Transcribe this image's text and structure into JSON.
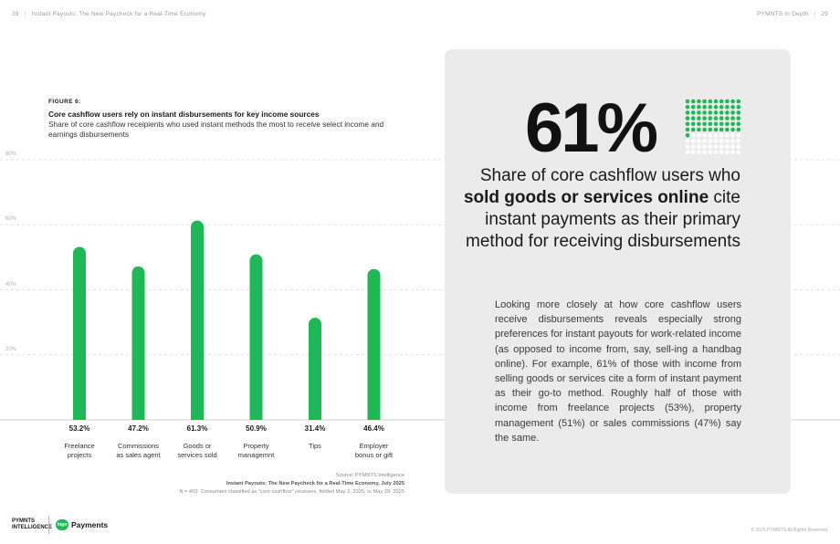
{
  "header": {
    "page_left": "28",
    "title_left": "Instant Payouts: The New Paycheck for a Real-Time Economy",
    "title_right": "PYMNTS In Depth",
    "page_right": "29"
  },
  "figure": {
    "label": "FIGURE 6:",
    "title": "Core cashflow users rely on instant disbursements for key income sources",
    "subtitle": "Share of core cashflow receipients who used instant methods the most to receive select income and earnings disbursements"
  },
  "chart_data": {
    "type": "bar",
    "categories": [
      [
        "Freelance",
        "projects"
      ],
      [
        "Commissions",
        "as sales agent"
      ],
      [
        "Goods or",
        "services sold"
      ],
      [
        "Property",
        "managemnt"
      ],
      [
        "Tips",
        ""
      ],
      [
        "Employer",
        "bonus or gift"
      ]
    ],
    "values": [
      53.2,
      47.2,
      61.3,
      50.9,
      31.4,
      46.4
    ],
    "value_labels": [
      "53.2%",
      "47.2%",
      "61.3%",
      "50.9%",
      "31.4%",
      "46.4%"
    ],
    "ylim": [
      0,
      80
    ],
    "yticks": [
      20,
      40,
      60,
      80
    ],
    "ytick_labels": [
      "20%",
      "40%",
      "60%",
      "80%"
    ],
    "grid": true,
    "bar_color": "#1db954",
    "grid_color": "#d8d8d8"
  },
  "source": {
    "line1": "Source: PYMNTS Intelligence",
    "line2": "Instant Payouts: The New Paycheck for a Real-Time Economy, July 2025",
    "line3": "N = 403: Consumers classified as \"core cashflow\" receivers, fielded May 2, 2025, to May 29, 2025"
  },
  "callout": {
    "stat": "61%",
    "stat_value": 61,
    "dot_color": "#1db954",
    "dot_empty_color": "#ffffff",
    "caption_pre": "Share of core cashflow users who ",
    "caption_bold": "sold goods or services online",
    "caption_post": " cite instant payments as their primary method for receiving disbursements",
    "body": "Looking more closely at how core cashflow users receive disbursements reveals especially strong preferences for instant payouts for work-related income (as opposed to income from, say, sell-ing a handbag online). For example, 61% of those with income from selling goods or services cite a form of instant payment as their go-to method. Roughly half of those with income from freelance projects (53%), property management (51%) or sales commissions (47%) say the same."
  },
  "footer": {
    "logo1_line1": "PYMNTS",
    "logo1_line2": "INTELLIGENCE",
    "logo2_badge": "ingo",
    "logo2_text": "Payments",
    "copyright": "© 2025 PYMNTS All Rights Reserved"
  }
}
